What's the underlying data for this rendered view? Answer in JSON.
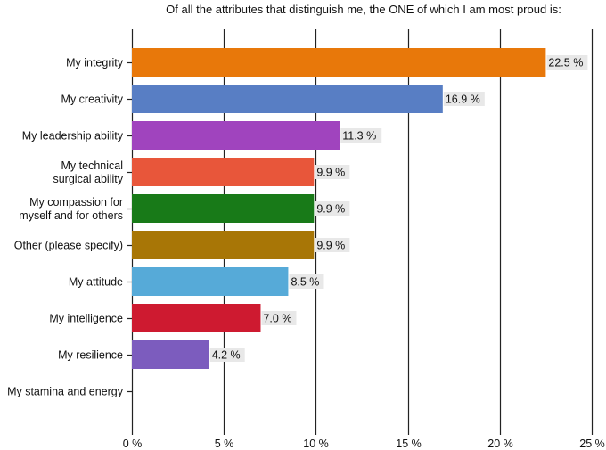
{
  "chart_data": {
    "type": "bar",
    "orientation": "horizontal",
    "title": "Of all the attributes that distinguish me, the ONE of which I am most proud is:",
    "xlabel": "",
    "ylabel": "",
    "xlim": [
      0,
      25
    ],
    "x_ticks": [
      0,
      5,
      10,
      15,
      20,
      25
    ],
    "tick_labels": [
      "0 %",
      "5 %",
      "10 %",
      "15 %",
      "20 %",
      "25 %"
    ],
    "grid": true,
    "categories": [
      [
        "My integrity"
      ],
      [
        "My creativity"
      ],
      [
        "My leadership ability"
      ],
      [
        "My technical",
        "surgical ability"
      ],
      [
        "My compassion for",
        "myself and for others"
      ],
      [
        "Other (please specify)"
      ],
      [
        "My attitude"
      ],
      [
        "My intelligence"
      ],
      [
        "My resilience"
      ],
      [
        "My stamina and energy"
      ]
    ],
    "values": [
      22.5,
      16.9,
      11.3,
      9.9,
      9.9,
      9.9,
      8.5,
      7.0,
      4.2,
      0
    ],
    "value_labels": [
      "22.5 %",
      "16.9 %",
      "11.3 %",
      "9.9 %",
      "9.9 %",
      "9.9 %",
      "8.5 %",
      "7.0 %",
      "4.2 %",
      ""
    ],
    "colors": [
      "#E8780A",
      "#587EC4",
      "#A044BE",
      "#E8563A",
      "#187A18",
      "#A87606",
      "#56AAD8",
      "#CE1A30",
      "#7C5CBE",
      "#999999"
    ]
  }
}
